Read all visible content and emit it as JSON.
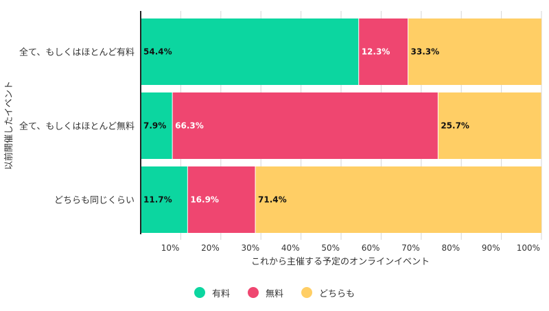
{
  "chart_data": {
    "type": "bar",
    "orientation": "horizontal",
    "stacked": true,
    "title": "",
    "xlabel": "これから主催する予定のオンラインイベント",
    "ylabel": "以前開催したイベント",
    "categories": [
      "全て、もしくはほとんど有料",
      "全て、もしくはほとんど無料",
      "どちらも同じくらい"
    ],
    "series": [
      {
        "name": "有料",
        "color": "#0cd6a0",
        "values": [
          54.4,
          7.9,
          11.7
        ],
        "labels": [
          "54.4%",
          "7.9%",
          "11.7%"
        ],
        "label_color": "#111111"
      },
      {
        "name": "無料",
        "color": "#ef4670",
        "values": [
          12.3,
          66.3,
          16.9
        ],
        "labels": [
          "12.3%",
          "66.3%",
          "16.9%"
        ],
        "label_color": "#ffffff"
      },
      {
        "name": "どちらも",
        "color": "#ffce65",
        "values": [
          33.3,
          25.7,
          71.4
        ],
        "labels": [
          "33.3%",
          "25.7%",
          "71.4%"
        ],
        "label_color": "#111111"
      }
    ],
    "xlim": [
      0,
      100
    ],
    "xticks": [
      10,
      20,
      30,
      40,
      50,
      60,
      70,
      80,
      90,
      100
    ],
    "xtick_labels": [
      "10%",
      "20%",
      "30%",
      "40%",
      "50%",
      "60%",
      "70%",
      "80%",
      "90%",
      "100%"
    ],
    "grid": true,
    "legend_position": "bottom"
  }
}
